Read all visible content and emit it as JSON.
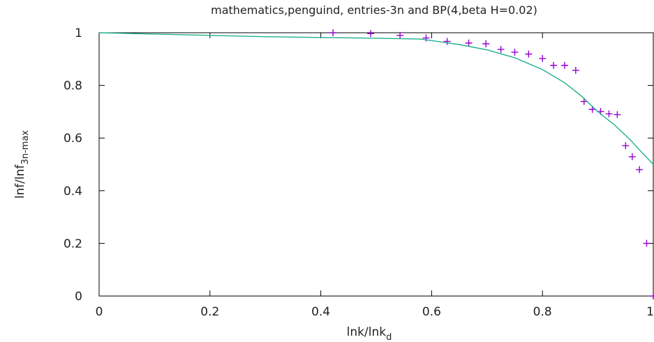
{
  "chart_data": {
    "type": "scatter",
    "title": "mathematics,penguind, entries-3n and BP(4,beta H=0.02)",
    "xlabel": {
      "main": "lnk/lnk",
      "sub": "d"
    },
    "ylabel": {
      "main": "lnf/lnf",
      "sub": "3n-max"
    },
    "xlim": [
      0,
      1
    ],
    "ylim": [
      0,
      1
    ],
    "x_ticks": [
      "0",
      "0.2",
      "0.4",
      "0.6",
      "0.8",
      "1"
    ],
    "y_ticks": [
      "0",
      "0.2",
      "0.4",
      "0.6",
      "0.8",
      "1"
    ],
    "grid": false,
    "legend": "none",
    "series": [
      {
        "type": "scatter",
        "marker": "plus",
        "color": "#9400d3",
        "points": [
          [
            0.422,
            1.0
          ],
          [
            0.49,
            0.997
          ],
          [
            0.543,
            0.99
          ],
          [
            0.59,
            0.98
          ],
          [
            0.628,
            0.967
          ],
          [
            0.667,
            0.961
          ],
          [
            0.698,
            0.958
          ],
          [
            0.725,
            0.937
          ],
          [
            0.75,
            0.926
          ],
          [
            0.775,
            0.919
          ],
          [
            0.8,
            0.902
          ],
          [
            0.82,
            0.876
          ],
          [
            0.84,
            0.876
          ],
          [
            0.86,
            0.857
          ],
          [
            0.875,
            0.739
          ],
          [
            0.89,
            0.709
          ],
          [
            0.905,
            0.701
          ],
          [
            0.92,
            0.692
          ],
          [
            0.935,
            0.689
          ],
          [
            0.95,
            0.571
          ],
          [
            0.962,
            0.529
          ],
          [
            0.975,
            0.48
          ],
          [
            0.988,
            0.2
          ],
          [
            1.0,
            0.0
          ]
        ]
      },
      {
        "type": "line",
        "color": "#20b08c",
        "points": [
          [
            0.0,
            1.0
          ],
          [
            0.1,
            0.995
          ],
          [
            0.2,
            0.99
          ],
          [
            0.3,
            0.985
          ],
          [
            0.4,
            0.982
          ],
          [
            0.5,
            0.979
          ],
          [
            0.58,
            0.976
          ],
          [
            0.6,
            0.97
          ],
          [
            0.65,
            0.955
          ],
          [
            0.7,
            0.935
          ],
          [
            0.75,
            0.905
          ],
          [
            0.8,
            0.86
          ],
          [
            0.84,
            0.81
          ],
          [
            0.87,
            0.76
          ],
          [
            0.9,
            0.7
          ],
          [
            0.93,
            0.65
          ],
          [
            0.94,
            0.63
          ],
          [
            0.95,
            0.61
          ],
          [
            0.96,
            0.59
          ],
          [
            0.975,
            0.555
          ],
          [
            1.0,
            0.5
          ]
        ]
      }
    ]
  }
}
